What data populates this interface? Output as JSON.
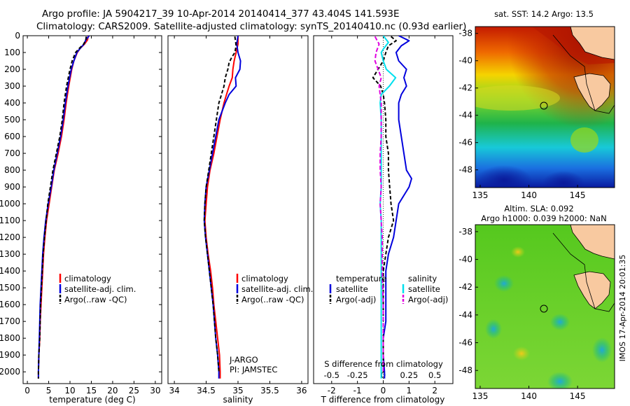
{
  "titles": {
    "line1": "Argo profile: JA 5904217_39 10-Apr-2014 20140414_377 43.404S 141.593E",
    "line2": "Climatology: CARS2009. Satellite-adjusted climatology: synTS_20140410.nc (0.93d earlier)"
  },
  "colors": {
    "climatology": "#ff0000",
    "satellite": "#0000dd",
    "argo": "#000000",
    "sat_s": "#00e0ee",
    "argo_s": "#e000e0"
  },
  "chart_data": [
    {
      "type": "line",
      "id": "temperature",
      "xlabel": "temperature (deg C)",
      "ylabel": "",
      "xlim": [
        -1,
        31.5
      ],
      "ylim": [
        2070,
        0
      ],
      "xticks": [
        0,
        5,
        10,
        15,
        20,
        25,
        30
      ],
      "yticks": [
        0,
        100,
        200,
        300,
        400,
        500,
        600,
        700,
        800,
        900,
        1000,
        1100,
        1200,
        1300,
        1400,
        1500,
        1600,
        1700,
        1800,
        1900,
        2000
      ],
      "legend": [
        "climatology",
        "satellite-adj. clim.",
        "Argo(..raw -QC)"
      ],
      "series": [
        {
          "name": "climatology",
          "depth": [
            0,
            25,
            50,
            75,
            100,
            150,
            200,
            300,
            400,
            500,
            600,
            700,
            800,
            900,
            1000,
            1100,
            1200,
            1300,
            1400,
            1500,
            1600,
            1700,
            1800,
            1900,
            2000,
            2040
          ],
          "values": [
            14.3,
            14.1,
            13.4,
            12.4,
            11.7,
            10.9,
            10.4,
            9.7,
            9.1,
            8.6,
            8.0,
            7.2,
            6.3,
            5.7,
            5.1,
            4.5,
            4.1,
            3.8,
            3.6,
            3.4,
            3.2,
            3.0,
            2.9,
            2.7,
            2.6,
            2.6
          ]
        },
        {
          "name": "satellite-adj. clim.",
          "depth": [
            0,
            25,
            50,
            75,
            100,
            150,
            200,
            300,
            400,
            500,
            600,
            700,
            800,
            900,
            1000,
            1100,
            1200,
            1300,
            1400,
            1500,
            1600,
            1700,
            1800,
            1900,
            2000,
            2040
          ],
          "values": [
            14.5,
            13.7,
            13.3,
            12.4,
            11.6,
            10.9,
            10.3,
            9.5,
            8.9,
            8.4,
            7.8,
            7.0,
            6.2,
            5.6,
            4.9,
            4.3,
            3.9,
            3.6,
            3.4,
            3.2,
            3.0,
            2.9,
            2.8,
            2.7,
            2.6,
            2.6
          ]
        },
        {
          "name": "Argo(..raw -QC)",
          "depth": [
            5,
            25,
            50,
            75,
            100,
            150,
            200,
            300,
            400,
            500,
            600,
            700,
            800,
            900,
            1000,
            1100,
            1200,
            1300,
            1400,
            1500,
            1600,
            1700,
            1800,
            1900,
            2000,
            2040
          ],
          "values": [
            13.8,
            13.7,
            13.2,
            12.2,
            11.3,
            10.5,
            10.0,
            9.2,
            8.6,
            8.2,
            7.6,
            6.8,
            6.0,
            5.4,
            4.8,
            4.4,
            4.0,
            3.7,
            3.5,
            3.3,
            3.1,
            3.0,
            2.9,
            2.7,
            2.6,
            2.6
          ]
        }
      ]
    },
    {
      "type": "line",
      "id": "salinity",
      "xlabel": "salinity",
      "xlim": [
        33.9,
        36.1
      ],
      "ylim": [
        2070,
        0
      ],
      "xticks": [
        34,
        34.5,
        35,
        35.5,
        36
      ],
      "xtick_labels": [
        "34",
        "34.5",
        "35",
        "35.5",
        "36"
      ],
      "legend": [
        "climatology",
        "satellite-adj. clim.",
        "Argo(..raw -QC)"
      ],
      "annotation": [
        "J-ARGO",
        "PI: JAMSTEC"
      ],
      "series": [
        {
          "name": "climatology",
          "depth": [
            0,
            50,
            100,
            150,
            200,
            250,
            300,
            350,
            400,
            500,
            600,
            700,
            800,
            900,
            1000,
            1100,
            1200,
            1300,
            1400,
            1500,
            1600,
            1700,
            1800,
            1900,
            2000,
            2040
          ],
          "values": [
            35.0,
            35.0,
            34.97,
            34.94,
            34.92,
            34.91,
            34.86,
            34.82,
            34.78,
            34.72,
            34.67,
            34.62,
            34.56,
            34.52,
            34.5,
            34.48,
            34.5,
            34.53,
            34.57,
            34.6,
            34.62,
            34.65,
            34.68,
            34.71,
            34.72,
            34.72
          ]
        },
        {
          "name": "satellite-adj. clim.",
          "depth": [
            0,
            50,
            100,
            150,
            200,
            250,
            300,
            350,
            400,
            500,
            600,
            700,
            800,
            900,
            1000,
            1100,
            1200,
            1300,
            1400,
            1500,
            1600,
            1700,
            1800,
            1900,
            2000,
            2040
          ],
          "values": [
            35.0,
            34.98,
            35.0,
            35.04,
            35.03,
            34.96,
            34.97,
            34.86,
            34.8,
            34.7,
            34.65,
            34.6,
            34.55,
            34.5,
            34.48,
            34.47,
            34.49,
            34.52,
            34.55,
            34.58,
            34.61,
            34.63,
            34.65,
            34.68,
            34.7,
            34.7
          ]
        },
        {
          "name": "Argo(..raw -QC)",
          "depth": [
            5,
            30,
            60,
            100,
            130,
            160,
            200,
            250,
            300,
            350,
            400,
            500,
            600,
            700,
            800,
            900,
            1000,
            1100,
            1200,
            1300,
            1400,
            1500,
            1600,
            1700,
            1800,
            1900,
            2000
          ],
          "values": [
            34.95,
            34.96,
            34.97,
            34.95,
            34.9,
            34.86,
            34.84,
            34.8,
            34.78,
            34.74,
            34.7,
            34.66,
            34.62,
            34.58,
            34.54,
            34.5,
            34.48,
            34.47,
            34.49,
            34.52,
            34.55,
            34.58,
            34.61,
            34.63,
            34.65,
            34.68,
            34.7
          ]
        }
      ]
    },
    {
      "type": "line",
      "id": "difference",
      "xlabel": "T difference from climatology",
      "xlabel2": "S difference from climatology",
      "xlim": [
        -2.7,
        2.7
      ],
      "ylim": [
        2070,
        0
      ],
      "xticks": [
        -2,
        -1,
        0,
        1,
        2
      ],
      "s_xticks": [
        -0.5,
        -0.25,
        0,
        0.25,
        0.5
      ],
      "s_xtick_labels": [
        "-0.5",
        "-0.25",
        "0",
        "0.25",
        "0.5"
      ],
      "legend_titles": [
        "temperature",
        "salinity"
      ],
      "legend": [
        "satellite",
        "Argo(-adj)",
        "satellite",
        "Argo(-adj)"
      ],
      "series": [
        {
          "name": "temperature satellite",
          "depth": [
            0,
            30,
            60,
            100,
            150,
            200,
            250,
            300,
            350,
            400,
            500,
            600,
            700,
            800,
            850,
            900,
            950,
            1000,
            1100,
            1200,
            1300,
            1400,
            1500,
            1600,
            1700,
            1800,
            1900,
            2000,
            2040
          ],
          "values": [
            0.6,
            1.0,
            0.7,
            0.5,
            0.6,
            0.9,
            0.8,
            0.9,
            0.7,
            0.6,
            0.6,
            0.7,
            0.8,
            0.9,
            1.1,
            1.0,
            0.8,
            0.6,
            0.5,
            0.4,
            0.2,
            0.1,
            0.1,
            0.1,
            0.1,
            0.0,
            0.0,
            0.05,
            0.05
          ]
        },
        {
          "name": "temperature Argo(-adj)",
          "depth": [
            5,
            30,
            60,
            100,
            150,
            200,
            250,
            300,
            350,
            400,
            500,
            600,
            700,
            800,
            900,
            1000,
            1100,
            1200,
            1300,
            1400,
            1500,
            1600,
            1700,
            1800,
            1900,
            2000
          ],
          "values": [
            0.3,
            0.5,
            0.2,
            0.1,
            0.0,
            -0.2,
            -0.4,
            -0.1,
            0.0,
            0.05,
            0.1,
            0.1,
            0.2,
            0.2,
            0.25,
            0.3,
            0.4,
            0.2,
            0.1,
            0.0,
            0.0,
            0.0,
            0.0,
            0.0,
            0.0,
            0.0
          ]
        },
        {
          "name": "salinity satellite",
          "depth": [
            0,
            40,
            80,
            100,
            150,
            200,
            250,
            300,
            350,
            400,
            500,
            600,
            700,
            800,
            900,
            1000,
            1100,
            1200,
            1400,
            1600,
            1800,
            2000,
            2040
          ],
          "values": [
            0.0,
            0.05,
            0.0,
            -0.02,
            0.0,
            0.03,
            0.12,
            0.06,
            -0.02,
            -0.03,
            -0.02,
            -0.02,
            -0.02,
            -0.02,
            -0.02,
            -0.03,
            -0.02,
            -0.02,
            -0.02,
            -0.02,
            -0.02,
            -0.02,
            -0.02
          ]
        },
        {
          "name": "salinity Argo(-adj)",
          "depth": [
            5,
            50,
            100,
            150,
            200,
            250,
            300,
            350,
            400,
            500,
            600,
            700,
            800,
            900,
            1000,
            1100,
            1200,
            1400,
            1600,
            1800,
            2000
          ],
          "values": [
            -0.08,
            -0.04,
            -0.07,
            -0.08,
            -0.05,
            -0.02,
            -0.04,
            -0.03,
            -0.02,
            -0.02,
            -0.02,
            -0.03,
            -0.03,
            -0.02,
            -0.03,
            -0.02,
            -0.01,
            -0.01,
            0.0,
            0.0,
            0.0
          ]
        }
      ]
    },
    {
      "type": "heatmap",
      "id": "sst-map",
      "title": "sat. SST: 14.2  Argo: 13.5",
      "xlim": [
        134.5,
        148.8
      ],
      "ylim": [
        -49.3,
        -37.5
      ],
      "xticks": [
        135,
        140,
        145
      ],
      "yticks": [
        -38,
        -40,
        -42,
        -44,
        -46,
        -48
      ],
      "marker": {
        "lon": 141.593,
        "lat": -43.404
      }
    },
    {
      "type": "heatmap",
      "id": "sla-map",
      "title": "Altim. SLA: 0.092",
      "subtitle": "Argo h1000: 0.039 h2000: NaN",
      "xlim": [
        134.5,
        148.8
      ],
      "ylim": [
        -49.3,
        -37.5
      ],
      "xticks": [
        135,
        140,
        145
      ],
      "yticks": [
        -38,
        -40,
        -42,
        -44,
        -46,
        -48
      ],
      "marker": {
        "lon": 141.593,
        "lat": -43.404
      },
      "side_label": "IMOS 17-Apr-2014 20:01:35"
    }
  ]
}
